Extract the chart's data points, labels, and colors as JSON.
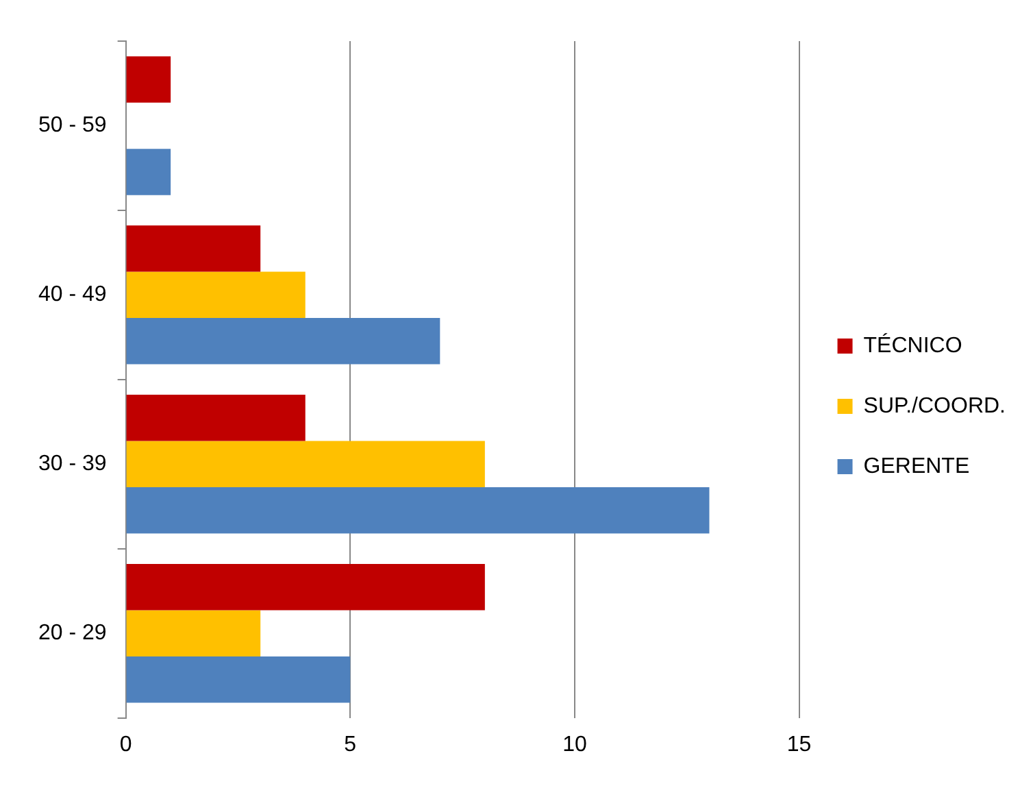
{
  "chart_data": {
    "type": "bar",
    "orientation": "horizontal",
    "categories": [
      "50 - 59",
      "40 - 49",
      "30 - 39",
      "20 - 29"
    ],
    "series": [
      {
        "name": "TÉCNICO",
        "color": "#c00000",
        "values": [
          1,
          3,
          4,
          8
        ]
      },
      {
        "name": "SUP./COORD.",
        "color": "#ffc000",
        "values": [
          0,
          4,
          8,
          3
        ]
      },
      {
        "name": "GERENTE",
        "color": "#4f81bd",
        "values": [
          1,
          7,
          13,
          5
        ]
      }
    ],
    "xlim": [
      0,
      15
    ],
    "xticks": [
      0,
      5,
      10,
      15
    ],
    "grid": "x",
    "legend": "right"
  }
}
